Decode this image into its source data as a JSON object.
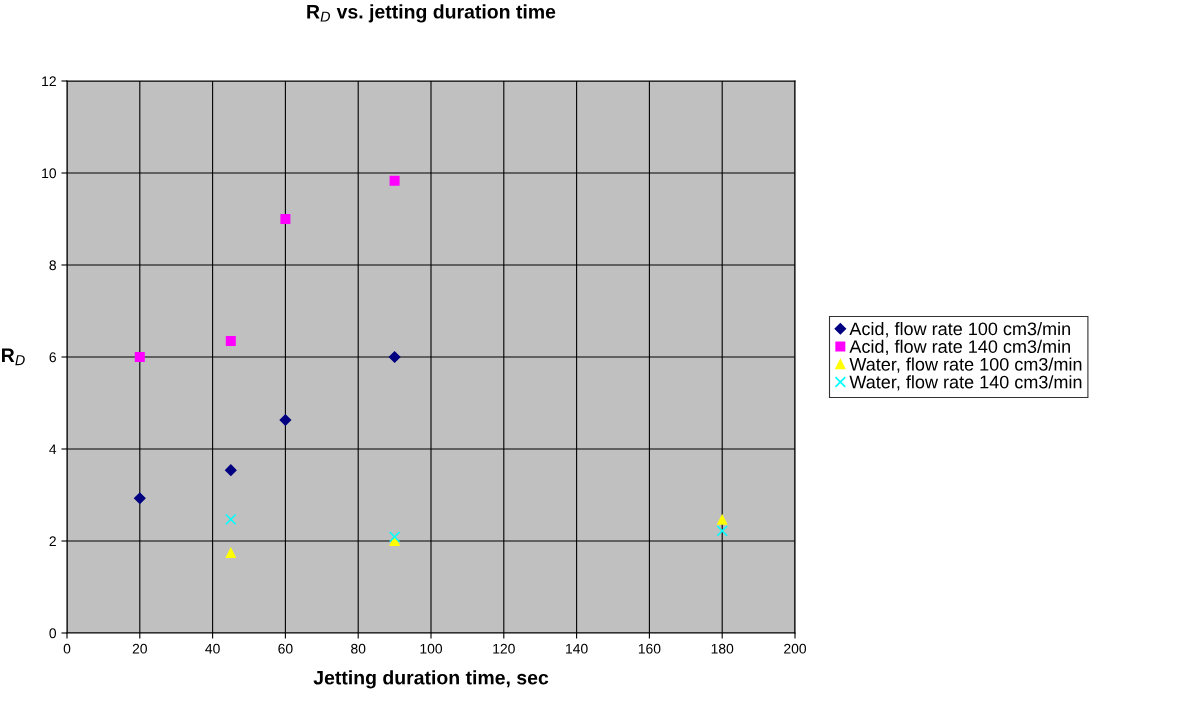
{
  "chart_data": {
    "type": "scatter",
    "title": "R$_{D}$ vs. jetting duration time",
    "xlabel": "Jetting duration time, sec",
    "ylabel": "R$_{D}$",
    "xlim": [
      0,
      200
    ],
    "xticks": [
      0,
      20,
      40,
      60,
      80,
      100,
      120,
      140,
      160,
      180,
      200
    ],
    "ylim": [
      0,
      12
    ],
    "yticks": [
      0,
      2,
      4,
      6,
      8,
      10,
      12
    ],
    "grid": true,
    "legend": "right",
    "series": [
      {
        "name": "Acid, flow rate 100 cm3/min",
        "color": "#000080",
        "marker": "diamond",
        "x": [
          20,
          45,
          60,
          90
        ],
        "values": [
          2.93,
          3.54,
          4.63,
          6.0
        ]
      },
      {
        "name": "Acid, flow rate 140 cm3/min",
        "color": "#ff00ff",
        "marker": "square",
        "x": [
          20,
          45,
          60,
          90
        ],
        "values": [
          6.0,
          6.35,
          9.0,
          9.83
        ]
      },
      {
        "name": "Water, flow rate 100 cm3/min",
        "color": "#ffff00",
        "marker": "triangle",
        "x": [
          45,
          90,
          180
        ],
        "values": [
          1.74,
          2.0,
          2.46
        ]
      },
      {
        "name": "Water, flow rate 140 cm3/min",
        "color": "#00ffff",
        "marker": "cross",
        "x": [
          45,
          90,
          180
        ],
        "values": [
          2.47,
          2.09,
          2.22
        ]
      }
    ]
  }
}
